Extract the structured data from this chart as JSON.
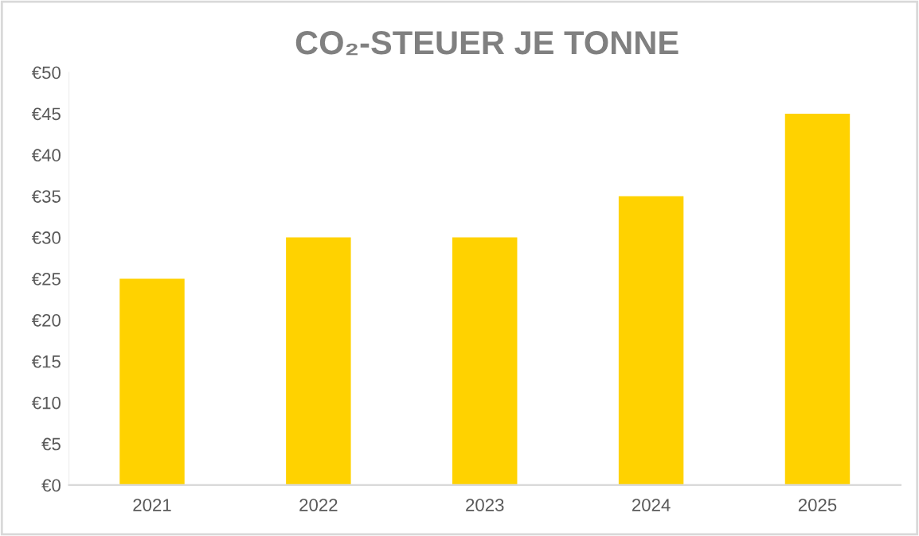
{
  "chart_data": {
    "type": "bar",
    "title": "CO₂-STEUER JE TONNE",
    "categories": [
      "2021",
      "2022",
      "2023",
      "2024",
      "2025"
    ],
    "values": [
      25,
      30,
      30,
      35,
      45
    ],
    "color": "#ffd200",
    "ylim": [
      0,
      50
    ],
    "yticks": [
      {
        "value": 0,
        "label": "€0"
      },
      {
        "value": 5,
        "label": "€5"
      },
      {
        "value": 10,
        "label": "€10"
      },
      {
        "value": 15,
        "label": "€15"
      },
      {
        "value": 20,
        "label": "€20"
      },
      {
        "value": 25,
        "label": "€25"
      },
      {
        "value": 30,
        "label": "€30"
      },
      {
        "value": 35,
        "label": "€35"
      },
      {
        "value": 40,
        "label": "€40"
      },
      {
        "value": 45,
        "label": "€45"
      },
      {
        "value": 50,
        "label": "€50"
      }
    ],
    "grid": false
  }
}
